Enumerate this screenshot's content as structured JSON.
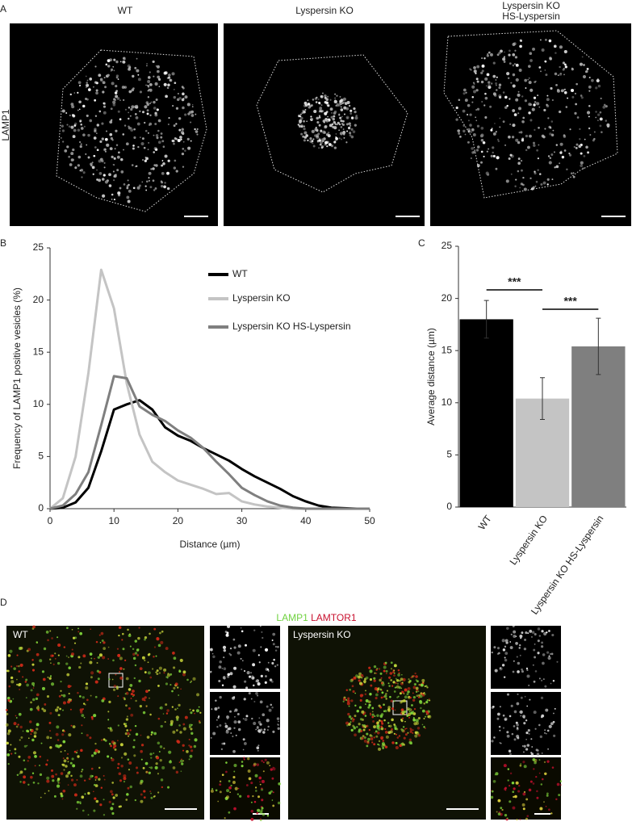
{
  "panel_labels": [
    "A",
    "B",
    "C",
    "D"
  ],
  "panel_a": {
    "columns": [
      [
        "WT"
      ],
      [
        "Lyspersin KO"
      ],
      [
        "Lyspersin KO",
        "HS-Lyspersin"
      ]
    ],
    "row_label": "LAMP1"
  },
  "chart_data": [
    {
      "type": "line",
      "x_label": "Distance (µm)",
      "y_label": "Frequency of LAMP1 positive vesicles (%)",
      "x": [
        0,
        2,
        4,
        6,
        8,
        10,
        12,
        14,
        16,
        18,
        20,
        22,
        24,
        26,
        28,
        30,
        32,
        34,
        36,
        38,
        40,
        42,
        44,
        46,
        48,
        50
      ],
      "series": [
        {
          "name": "WT",
          "color": "#000000",
          "values": [
            0,
            0.1,
            0.6,
            2,
            5.5,
            9.5,
            10,
            10.4,
            9.5,
            7.8,
            7,
            6.5,
            5.8,
            5.2,
            4.6,
            3.8,
            3.1,
            2.5,
            1.9,
            1.2,
            0.7,
            0.3,
            0.1,
            0.05,
            0,
            0
          ]
        },
        {
          "name": "Lyspersin KO",
          "color": "#c4c4c4",
          "values": [
            0,
            1,
            5,
            13,
            22.9,
            19.2,
            12,
            7.1,
            4.5,
            3.5,
            2.7,
            2.3,
            1.9,
            1.4,
            1.5,
            0.7,
            0.4,
            0.2,
            0.1,
            0,
            0,
            0,
            0,
            0,
            0,
            0
          ]
        },
        {
          "name": "Lyspersin KO HS-Lyspersin",
          "color": "#7f7f7f",
          "values": [
            0,
            0.3,
            1.4,
            3.5,
            8,
            12.7,
            12.5,
            9.8,
            9,
            8.4,
            7.5,
            6.8,
            5.8,
            4.5,
            3.3,
            2,
            1.3,
            0.7,
            0.3,
            0.1,
            0,
            0,
            0,
            0,
            0,
            0
          ]
        }
      ],
      "xlim": [
        0,
        50
      ],
      "xticks": [
        0,
        10,
        20,
        30,
        40,
        50
      ],
      "ylim": [
        0,
        25
      ],
      "yticks": [
        0,
        5,
        10,
        15,
        20,
        25
      ]
    },
    {
      "type": "bar",
      "y_label": "Average distance (µm)",
      "categories": [
        "WT",
        "Lyspersin KO",
        "Lyspersin KO HS-Lyspersin"
      ],
      "values": [
        18,
        10.4,
        15.4
      ],
      "errors": [
        1.8,
        2,
        2.7
      ],
      "colors": [
        "#000000",
        "#c4c4c4",
        "#7f7f7f"
      ],
      "ylim": [
        0,
        25
      ],
      "yticks": [
        0,
        5,
        10,
        15,
        20,
        25
      ],
      "annotations": [
        {
          "label": "***",
          "between": [
            "WT",
            "Lyspersin KO"
          ]
        },
        {
          "label": "***",
          "between": [
            "Lyspersin KO",
            "Lyspersin KO HS-Lyspersin"
          ]
        }
      ]
    }
  ],
  "panel_d": {
    "channels": [
      {
        "name": "LAMP1",
        "color": "#6fd23f"
      },
      {
        "name": "LAMTOR1",
        "color": "#c8102e"
      }
    ],
    "images": [
      "WT",
      "Lyspersin KO"
    ]
  }
}
